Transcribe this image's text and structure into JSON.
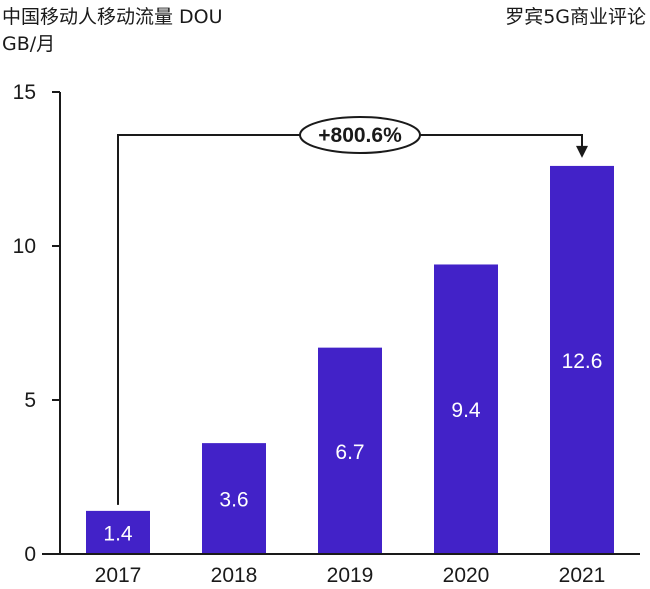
{
  "chart_data": {
    "type": "bar",
    "title": "中国移动人移动流量 DOU",
    "subtitle": "GB/月",
    "source": "罗宾5G商业评论",
    "xlabel": "",
    "ylabel": "GB/月",
    "categories": [
      "2017",
      "2018",
      "2019",
      "2020",
      "2021"
    ],
    "values": [
      1.4,
      3.6,
      6.7,
      9.4,
      12.6
    ],
    "data_labels": [
      "1.4",
      "3.6",
      "6.7",
      "9.4",
      "12.6"
    ],
    "ylim": [
      0,
      15
    ],
    "yticks": [
      0,
      5,
      10,
      15
    ],
    "grid": false,
    "legend": "none",
    "bar_color": "#4222C8",
    "annotation": {
      "text": "+800.6%",
      "from_category": "2017",
      "to_category": "2021"
    }
  }
}
